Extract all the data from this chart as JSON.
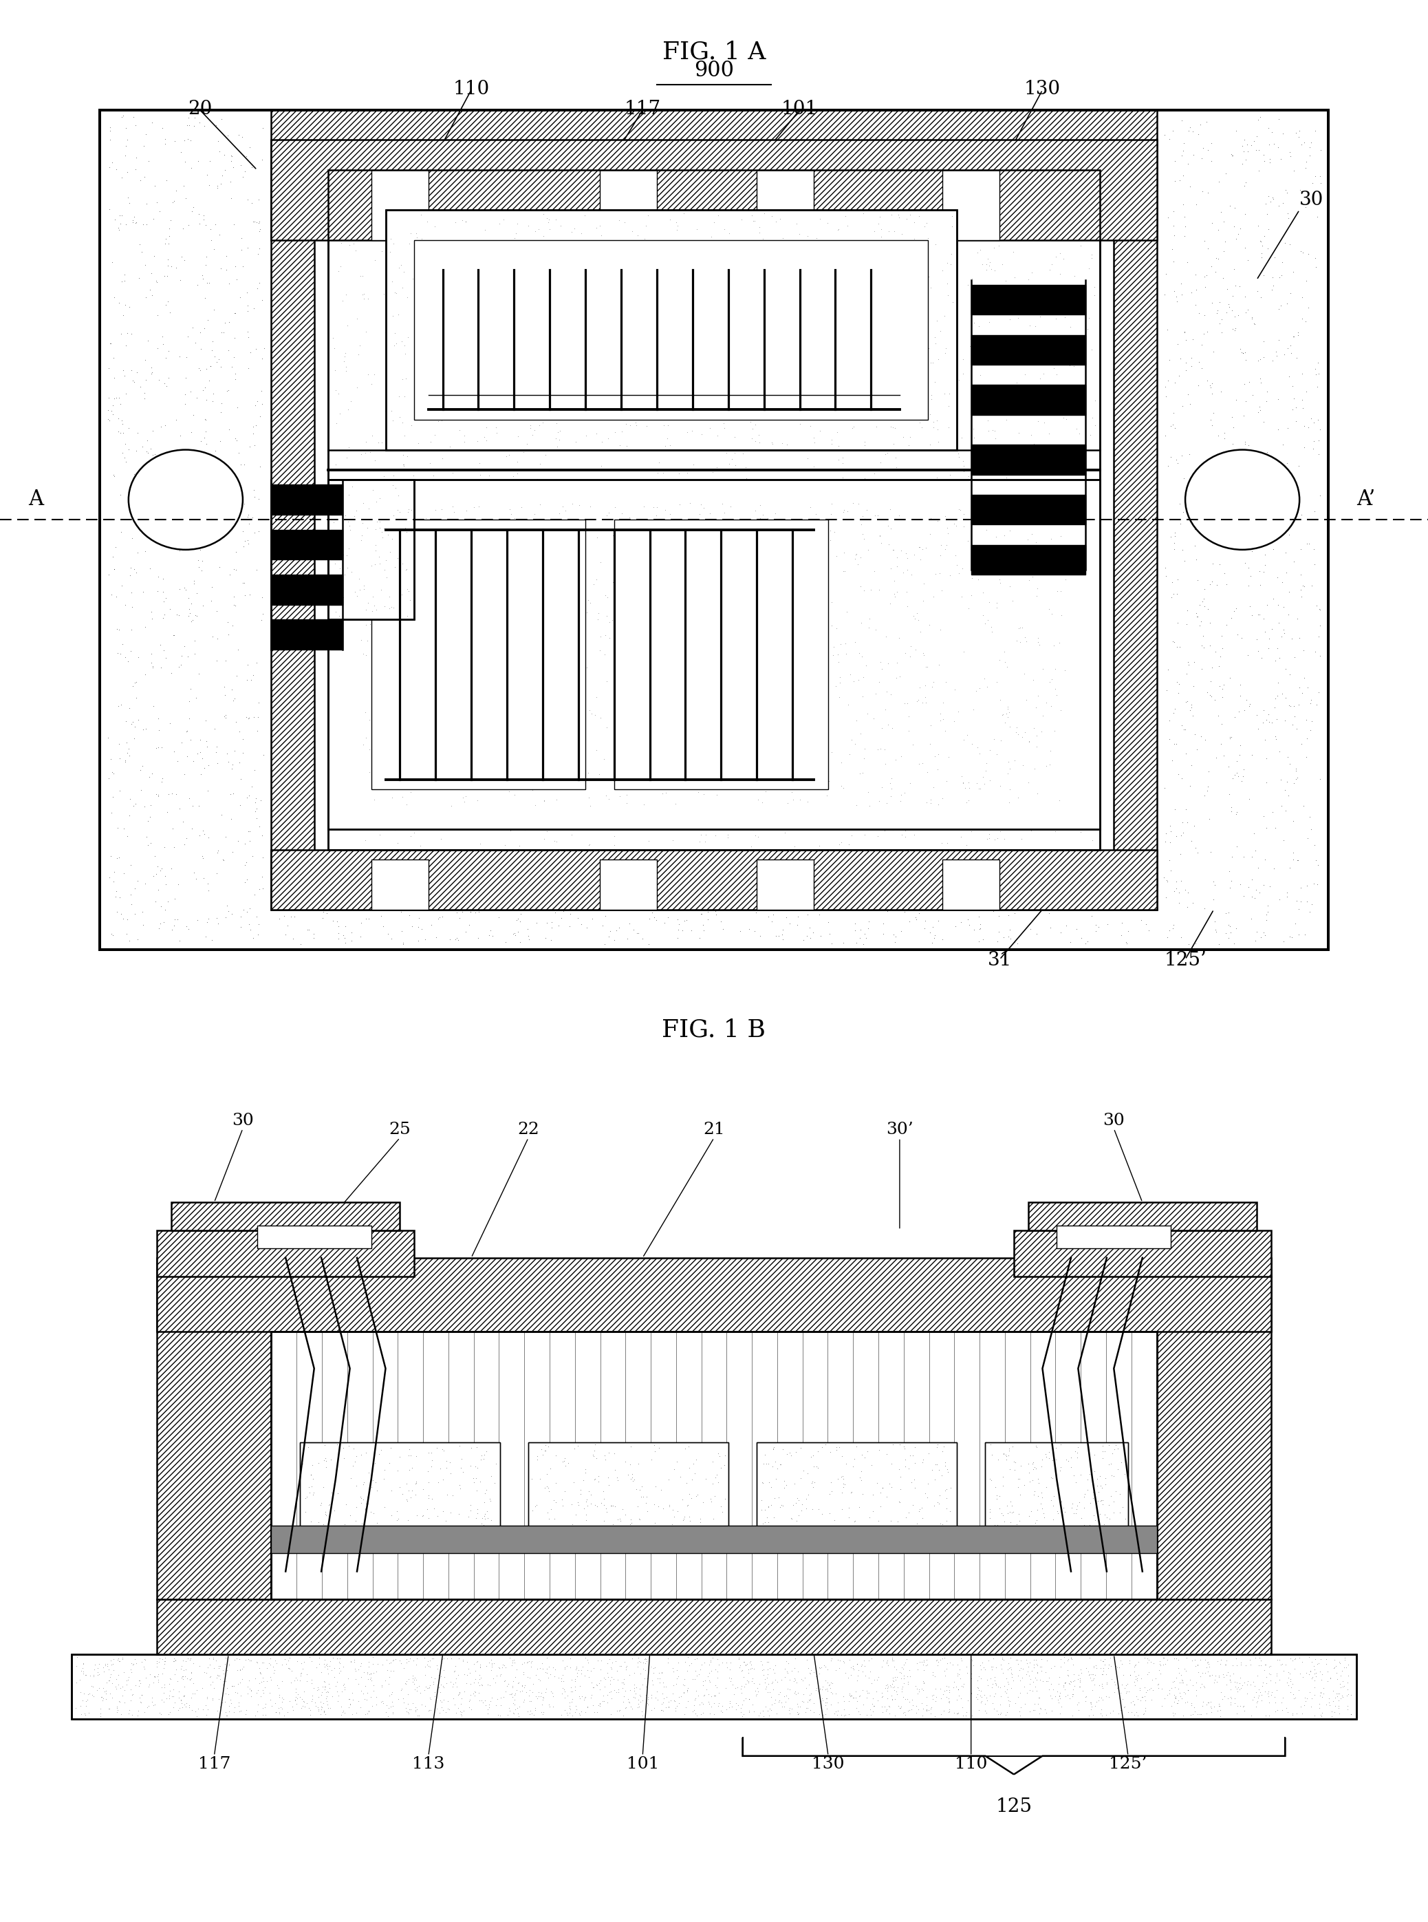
{
  "bg_color": "#ffffff",
  "fig1a_title": "FIG. 1 A",
  "fig1b_title": "FIG. 1 B",
  "label_900": "900",
  "label_A": "A",
  "label_Ap": "A’",
  "label_31": "31",
  "label_125p": "125’",
  "label_125": "125",
  "label_30p": "30’"
}
